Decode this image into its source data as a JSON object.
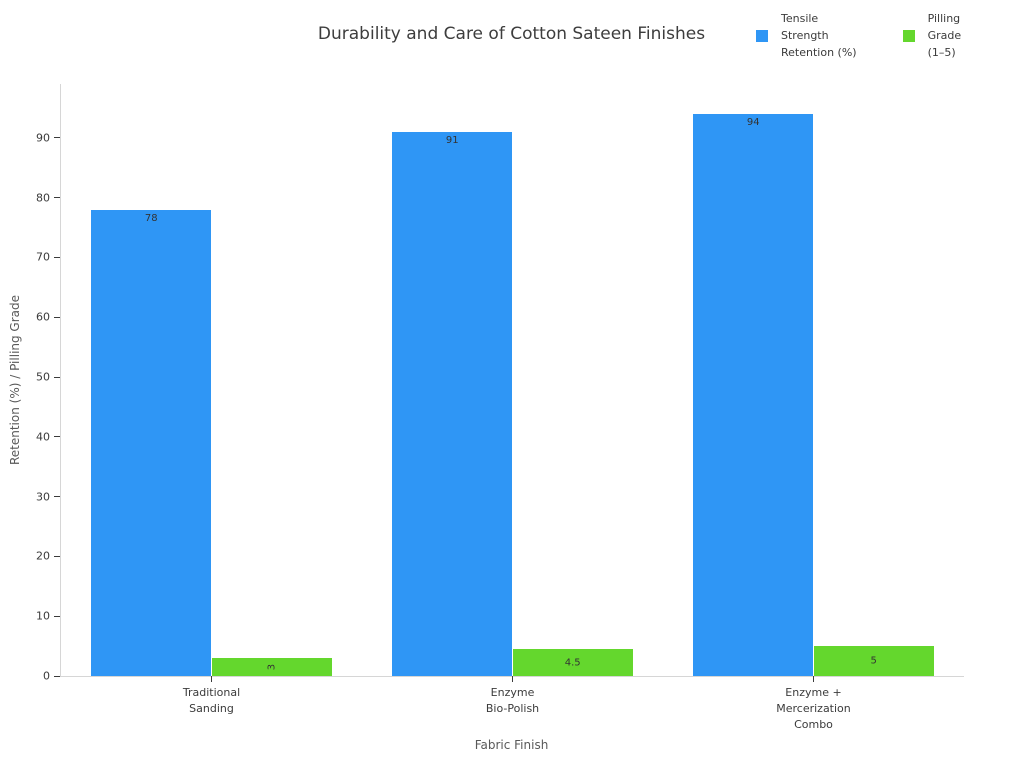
{
  "title": "Durability and Care of Cotton Sateen Finishes",
  "chart_data": {
    "type": "bar",
    "categories": [
      "Traditional\nSanding",
      "Enzyme\nBio-Polish",
      "Enzyme +\nMercerization\nCombo"
    ],
    "series": [
      {
        "name": "Tensile\nStrength\nRetention (%)",
        "color": "#2F96F5",
        "values": [
          78,
          91,
          94
        ],
        "labels": [
          "78",
          "91",
          "94"
        ],
        "label_pos": "inside-top",
        "rotated_labels": [
          false,
          false,
          false
        ]
      },
      {
        "name": "Pilling\nGrade\n(1–5)",
        "color": "#64D72D",
        "values": [
          3,
          4.5,
          5
        ],
        "labels": [
          "3",
          "4.5",
          "5"
        ],
        "label_pos": "inside-center",
        "rotated_labels": [
          true,
          false,
          false
        ]
      }
    ],
    "title": "Durability and Care of Cotton Sateen Finishes",
    "xlabel": "Fabric Finish",
    "ylabel": "Retention (%) / Pilling Grade",
    "ylim": [
      0,
      99
    ],
    "yticks": [
      0,
      10,
      20,
      30,
      40,
      50,
      60,
      70,
      80,
      90
    ],
    "grid": false,
    "legend_position": "top-right",
    "bar_group_width_fraction": 0.8
  },
  "colors": {
    "background": "#ffffff",
    "spine": "#d6d6d6",
    "tick_text": "#3b3b3b",
    "axis_label_text": "#595959",
    "title_text": "#3d3d3d"
  }
}
